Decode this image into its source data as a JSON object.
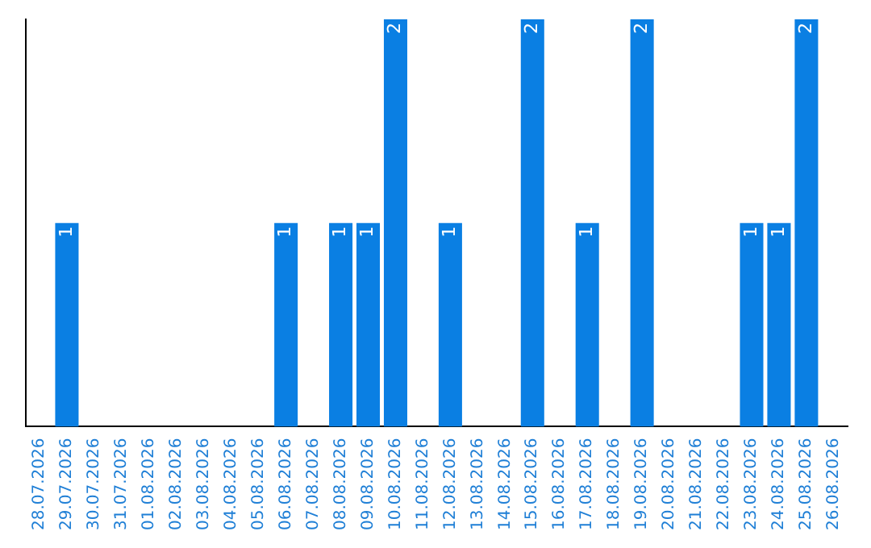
{
  "chart_data": {
    "type": "bar",
    "categories": [
      "28.07.2026",
      "29.07.2026",
      "30.07.2026",
      "31.07.2026",
      "01.08.2026",
      "02.08.2026",
      "03.08.2026",
      "04.08.2026",
      "05.08.2026",
      "06.08.2026",
      "07.08.2026",
      "08.08.2026",
      "09.08.2026",
      "10.08.2026",
      "11.08.2026",
      "12.08.2026",
      "13.08.2026",
      "14.08.2026",
      "15.08.2026",
      "16.08.2026",
      "17.08.2026",
      "18.08.2026",
      "19.08.2026",
      "20.08.2026",
      "21.08.2026",
      "22.08.2026",
      "23.08.2026",
      "24.08.2026",
      "25.08.2026",
      "26.08.2026"
    ],
    "values": [
      0,
      1,
      0,
      0,
      0,
      0,
      0,
      0,
      0,
      1,
      0,
      1,
      1,
      2,
      0,
      1,
      0,
      0,
      2,
      0,
      1,
      0,
      2,
      0,
      0,
      0,
      1,
      1,
      2,
      0
    ],
    "value_labels": [
      null,
      "1",
      null,
      null,
      null,
      null,
      null,
      null,
      null,
      "1",
      null,
      "1",
      "1",
      "2",
      null,
      "1",
      null,
      null,
      "2",
      null,
      "1",
      null,
      "2",
      null,
      null,
      null,
      "1",
      "1",
      "2",
      null
    ],
    "color": "#0a7fe3",
    "grid": false,
    "legend": false,
    "tick_labels": "x"
  }
}
